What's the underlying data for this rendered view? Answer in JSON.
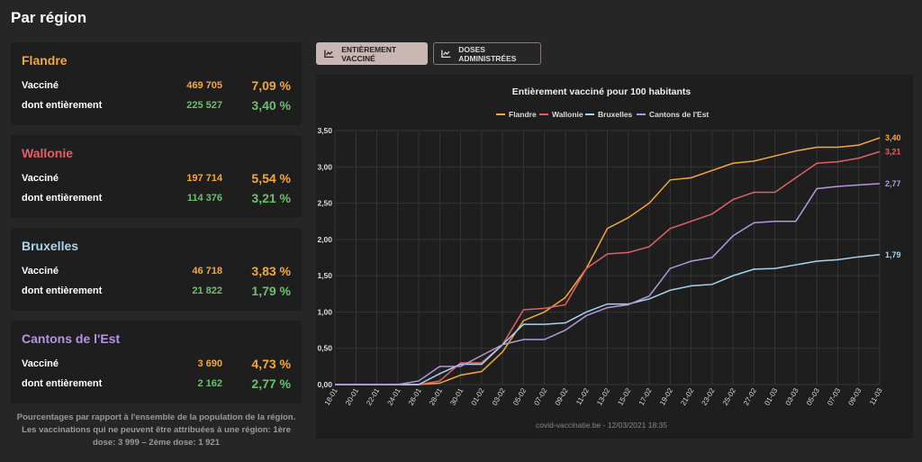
{
  "title": "Par région",
  "regions": [
    {
      "name": "Flandre",
      "color": "#f5a83a",
      "vaccinated_label": "Vacciné",
      "vaccinated": "469 705",
      "vaccinated_pct": "7,09 %",
      "full_label": "dont entièrement",
      "full": "225 527",
      "full_pct": "3,40 %"
    },
    {
      "name": "Wallonie",
      "color": "#e06066",
      "vaccinated_label": "Vacciné",
      "vaccinated": "197 714",
      "vaccinated_pct": "5,54 %",
      "full_label": "dont entièrement",
      "full": "114 376",
      "full_pct": "3,21 %"
    },
    {
      "name": "Bruxelles",
      "color": "#a8d4ef",
      "vaccinated_label": "Vacciné",
      "vaccinated": "46 718",
      "vaccinated_pct": "3,83 %",
      "full_label": "dont entièrement",
      "full": "21 822",
      "full_pct": "1,79 %"
    },
    {
      "name": "Cantons de l'Est",
      "color": "#b596e0",
      "vaccinated_label": "Vacciné",
      "vaccinated": "3 690",
      "vaccinated_pct": "4,73 %",
      "full_label": "dont entièrement",
      "full": "2 162",
      "full_pct": "2,77 %"
    }
  ],
  "colors": {
    "orange": "#f5a83a",
    "green": "#6cc06c"
  },
  "note": "Pourcentages par rapport à l'ensemble de la population de la région. Les vaccinations qui ne peuvent être attribuées à une région: 1ère dose: 3 999 – 2ème dose: 1 921",
  "buttons": {
    "full": "ENTIÈREMENT VACCINÉ",
    "doses": "DOSES ADMINISTRÉES"
  },
  "chart_data": {
    "type": "line",
    "title": "Entièrement vacciné pour 100 habitants",
    "source": "covid-vaccinatie.be - 12/03/2021 18:35",
    "ylim": [
      0,
      3.5
    ],
    "yticks": [
      "0,00",
      "0,50",
      "1,00",
      "1,50",
      "2,00",
      "2,50",
      "3,00",
      "3,50"
    ],
    "categories": [
      "18-01",
      "20-01",
      "22-01",
      "24-01",
      "26-01",
      "28-01",
      "30-01",
      "01-02",
      "03-02",
      "05-02",
      "07-02",
      "09-02",
      "11-02",
      "13-02",
      "15-02",
      "17-02",
      "19-02",
      "21-02",
      "23-02",
      "25-02",
      "27-02",
      "01-03",
      "03-03",
      "05-03",
      "07-03",
      "09-03",
      "11-03"
    ],
    "series": [
      {
        "name": "Flandre",
        "color": "#f5a83a",
        "end_label": "3,40",
        "values": [
          0,
          0,
          0,
          0,
          0,
          0.02,
          0.13,
          0.18,
          0.45,
          0.88,
          1.0,
          1.2,
          1.6,
          2.15,
          2.3,
          2.5,
          2.82,
          2.85,
          2.95,
          3.05,
          3.08,
          3.15,
          3.22,
          3.27,
          3.27,
          3.3,
          3.4
        ]
      },
      {
        "name": "Wallonie",
        "color": "#e06066",
        "end_label": "3,21",
        "values": [
          0,
          0,
          0,
          0,
          0,
          0.05,
          0.3,
          0.3,
          0.55,
          1.03,
          1.05,
          1.1,
          1.6,
          1.8,
          1.82,
          1.9,
          2.15,
          2.25,
          2.35,
          2.55,
          2.65,
          2.65,
          2.85,
          3.05,
          3.07,
          3.12,
          3.21
        ]
      },
      {
        "name": "Bruxelles",
        "color": "#a8d4ef",
        "end_label": "1,79",
        "values": [
          0,
          0,
          0,
          0,
          0,
          0.15,
          0.28,
          0.28,
          0.55,
          0.83,
          0.83,
          0.85,
          1.0,
          1.11,
          1.11,
          1.18,
          1.3,
          1.36,
          1.38,
          1.5,
          1.59,
          1.6,
          1.65,
          1.7,
          1.72,
          1.76,
          1.79
        ]
      },
      {
        "name": "Cantons de l'Est",
        "color": "#b596e0",
        "end_label": "2,77",
        "values": [
          0,
          0,
          0,
          0,
          0.05,
          0.25,
          0.25,
          0.4,
          0.55,
          0.62,
          0.62,
          0.75,
          0.95,
          1.06,
          1.1,
          1.22,
          1.6,
          1.7,
          1.75,
          2.05,
          2.23,
          2.25,
          2.25,
          2.7,
          2.73,
          2.75,
          2.77
        ]
      }
    ]
  }
}
